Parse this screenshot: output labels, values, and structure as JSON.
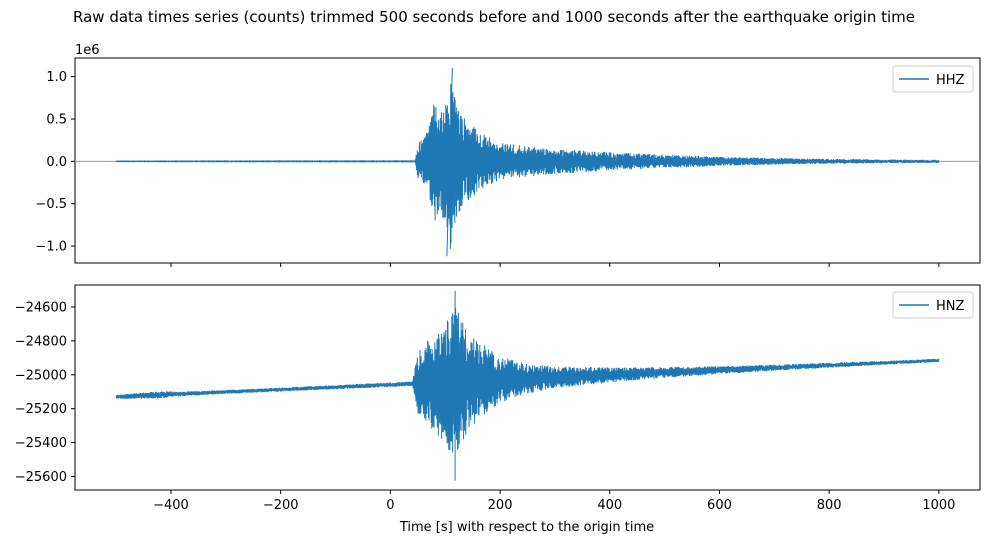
{
  "figure": {
    "suptitle": "Raw data times series (counts) trimmed 500 seconds before and 1000 seconds after the earthquake origin time",
    "xlabel": "Time [s] with respect to the origin time"
  },
  "chart_data": [
    {
      "type": "line",
      "title": "",
      "xlabel": "",
      "ylabel": "",
      "offset_text": "1e6",
      "xlim": [
        -575,
        1075
      ],
      "ylim": [
        -1.2,
        1.22
      ],
      "y_scale_factor": 1000000,
      "xticks": [
        -400,
        -200,
        0,
        200,
        400,
        600,
        800,
        1000
      ],
      "xtick_labels_visible": false,
      "yticks": [
        -1.0,
        -0.5,
        0.0,
        0.5,
        1.0
      ],
      "ytick_labels": [
        "−1.0",
        "−0.5",
        "0.0",
        "0.5",
        "1.0"
      ],
      "grid": false,
      "legend_loc": "upper right",
      "zero_line": true,
      "color": "#1f77b4",
      "series": [
        {
          "name": "HHZ",
          "x_range": [
            -500,
            1000
          ],
          "baseline": 0.0,
          "envelope_keypoints": [
            [
              -500,
              0.003
            ],
            [
              45,
              0.004
            ],
            [
              50,
              0.22
            ],
            [
              60,
              0.28
            ],
            [
              70,
              0.4
            ],
            [
              80,
              0.72
            ],
            [
              90,
              0.62
            ],
            [
              100,
              0.7
            ],
            [
              110,
              1.1
            ],
            [
              120,
              0.68
            ],
            [
              130,
              0.55
            ],
            [
              150,
              0.42
            ],
            [
              175,
              0.3
            ],
            [
              200,
              0.22
            ],
            [
              250,
              0.18
            ],
            [
              300,
              0.15
            ],
            [
              400,
              0.11
            ],
            [
              500,
              0.08
            ],
            [
              600,
              0.055
            ],
            [
              700,
              0.04
            ],
            [
              800,
              0.03
            ],
            [
              900,
              0.022
            ],
            [
              1000,
              0.02
            ]
          ],
          "peak": {
            "x": 113,
            "y": 1.1
          },
          "trough": {
            "x": 103,
            "y": -1.12
          }
        }
      ]
    },
    {
      "type": "line",
      "title": "",
      "xlabel": "",
      "ylabel": "",
      "xlim": [
        -575,
        1075
      ],
      "ylim": [
        -25680,
        -24470
      ],
      "xticks": [
        -400,
        -200,
        0,
        200,
        400,
        600,
        800,
        1000
      ],
      "xtick_labels": [
        "−400",
        "−200",
        "0",
        "200",
        "400",
        "600",
        "800",
        "1000"
      ],
      "yticks": [
        -25600,
        -25400,
        -25200,
        -25000,
        -24800,
        -24600
      ],
      "ytick_labels": [
        "−25600",
        "−25400",
        "−25200",
        "−25000",
        "−24800",
        "−24600"
      ],
      "grid": false,
      "legend_loc": "upper right",
      "color": "#1f77b4",
      "series": [
        {
          "name": "HNZ",
          "x_range": [
            -500,
            1000
          ],
          "baseline_linear": {
            "start": [
              -500,
              -25130
            ],
            "end": [
              1000,
              -24915
            ]
          },
          "envelope_keypoints": [
            [
              -500,
              12
            ],
            [
              -420,
              22
            ],
            [
              -380,
              14
            ],
            [
              -300,
              12
            ],
            [
              -200,
              12
            ],
            [
              40,
              14
            ],
            [
              50,
              180
            ],
            [
              70,
              260
            ],
            [
              90,
              320
            ],
            [
              110,
              420
            ],
            [
              120,
              450
            ],
            [
              130,
              360
            ],
            [
              150,
              260
            ],
            [
              175,
              200
            ],
            [
              200,
              140
            ],
            [
              250,
              90
            ],
            [
              300,
              65
            ],
            [
              400,
              45
            ],
            [
              500,
              32
            ],
            [
              600,
              24
            ],
            [
              700,
              18
            ],
            [
              800,
              15
            ],
            [
              900,
              12
            ],
            [
              1000,
              10
            ]
          ],
          "peak": {
            "x": 118,
            "y": -24505
          },
          "trough": {
            "x": 118,
            "y": -25625
          }
        }
      ]
    }
  ]
}
